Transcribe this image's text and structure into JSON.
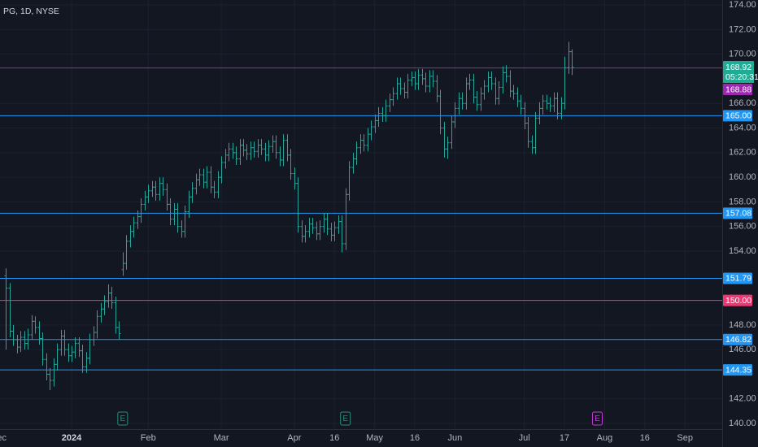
{
  "chart_data": {
    "type": "ohlc",
    "title": "PG, 1D, NYSE",
    "color": "#26a69a",
    "grid": true,
    "ylim": [
      139.54,
      174.4
    ],
    "xlim": [
      -19.6,
      178.2
    ],
    "yticks": [
      {
        "value": 140,
        "label": "140.00"
      },
      {
        "value": 142,
        "label": "142.00"
      },
      {
        "value": 146,
        "label": "146.00"
      },
      {
        "value": 148,
        "label": "148.00"
      },
      {
        "value": 154,
        "label": "154.00"
      },
      {
        "value": 156,
        "label": "156.00"
      },
      {
        "value": 158,
        "label": "158.00"
      },
      {
        "value": 160,
        "label": "160.00"
      },
      {
        "value": 162,
        "label": "162.00"
      },
      {
        "value": 164,
        "label": "164.00"
      },
      {
        "value": 166,
        "label": "166.00"
      },
      {
        "value": 170,
        "label": "170.00"
      },
      {
        "value": 172,
        "label": "172.00"
      },
      {
        "value": 174,
        "label": "174.00"
      }
    ],
    "xticks": [
      {
        "value": -20,
        "label": "Dec"
      },
      {
        "value": 0,
        "label": "2024"
      },
      {
        "value": 21,
        "label": "Feb"
      },
      {
        "value": 41,
        "label": "Mar"
      },
      {
        "value": 61,
        "label": "Apr"
      },
      {
        "value": 72,
        "label": "16"
      },
      {
        "value": 83,
        "label": "May"
      },
      {
        "value": 94,
        "label": "16"
      },
      {
        "value": 105,
        "label": "Jun"
      },
      {
        "value": 124,
        "label": "Jul"
      },
      {
        "value": 135,
        "label": "17"
      },
      {
        "value": 146,
        "label": "Aug"
      },
      {
        "value": 157,
        "label": "16"
      },
      {
        "value": 168,
        "label": "Sep"
      }
    ],
    "x_start": -18,
    "ohlc": [
      [
        152.0,
        152.6,
        146.0,
        151.0
      ],
      [
        151.0,
        151.4,
        147.0,
        147.5
      ],
      [
        147.5,
        148.0,
        146.3,
        146.8
      ],
      [
        146.8,
        147.2,
        145.7,
        146.2
      ],
      [
        146.2,
        147.5,
        145.8,
        147.0
      ],
      [
        147.0,
        147.5,
        146.0,
        146.5
      ],
      [
        146.5,
        147.7,
        146.0,
        147.2
      ],
      [
        147.2,
        148.8,
        146.8,
        148.3
      ],
      [
        148.3,
        148.7,
        147.3,
        147.8
      ],
      [
        147.8,
        148.3,
        146.4,
        146.9
      ],
      [
        146.9,
        147.4,
        144.7,
        145.2
      ],
      [
        145.2,
        145.7,
        143.5,
        144.0
      ],
      [
        144.0,
        144.5,
        142.7,
        143.5
      ],
      [
        143.5,
        145.3,
        143.0,
        144.8
      ],
      [
        144.8,
        146.5,
        144.3,
        146.0
      ],
      [
        146.0,
        147.6,
        145.5,
        147.1
      ],
      [
        147.1,
        147.6,
        145.5,
        146.0
      ],
      [
        146.0,
        146.5,
        145.0,
        145.5
      ],
      [
        145.5,
        146.3,
        145.0,
        145.8
      ],
      [
        145.8,
        147.0,
        145.3,
        146.5
      ],
      [
        146.5,
        147.0,
        145.4,
        145.9
      ],
      [
        145.9,
        146.4,
        144.1,
        144.6
      ],
      [
        144.6,
        145.8,
        144.1,
        145.3
      ],
      [
        145.3,
        147.3,
        144.8,
        146.8
      ],
      [
        146.8,
        147.9,
        146.3,
        147.4
      ],
      [
        147.4,
        149.2,
        146.9,
        148.7
      ],
      [
        148.7,
        149.8,
        148.2,
        149.3
      ],
      [
        149.3,
        150.4,
        148.8,
        149.9
      ],
      [
        149.9,
        151.3,
        149.4,
        150.6
      ],
      [
        150.6,
        151.1,
        149.3,
        149.8
      ],
      [
        149.8,
        150.3,
        147.3,
        147.8
      ],
      [
        147.8,
        148.3,
        146.8,
        147.3
      ],
      [
        152.5,
        153.9,
        152.0,
        153.0
      ],
      [
        153.0,
        155.3,
        152.5,
        154.8
      ],
      [
        154.8,
        156.1,
        154.3,
        155.6
      ],
      [
        155.6,
        156.8,
        155.1,
        156.3
      ],
      [
        156.3,
        157.3,
        155.8,
        156.8
      ],
      [
        156.8,
        158.3,
        156.3,
        157.8
      ],
      [
        157.8,
        158.9,
        157.3,
        158.4
      ],
      [
        158.4,
        159.4,
        157.9,
        158.9
      ],
      [
        158.9,
        159.7,
        158.4,
        159.2
      ],
      [
        159.2,
        159.7,
        158.1,
        158.6
      ],
      [
        158.6,
        160.0,
        158.1,
        159.5
      ],
      [
        159.5,
        160.0,
        158.5,
        159.0
      ],
      [
        159.0,
        159.5,
        157.3,
        157.8
      ],
      [
        157.8,
        158.3,
        156.1,
        156.6
      ],
      [
        156.6,
        157.9,
        156.1,
        157.4
      ],
      [
        157.4,
        157.9,
        155.5,
        156.0
      ],
      [
        156.0,
        156.5,
        155.1,
        155.6
      ],
      [
        155.6,
        157.7,
        155.1,
        157.2
      ],
      [
        157.2,
        158.9,
        156.7,
        158.4
      ],
      [
        158.4,
        159.6,
        157.9,
        159.1
      ],
      [
        159.1,
        160.3,
        158.6,
        159.8
      ],
      [
        159.8,
        160.7,
        159.3,
        160.2
      ],
      [
        160.2,
        160.7,
        159.1,
        159.6
      ],
      [
        159.6,
        160.9,
        159.1,
        160.4
      ],
      [
        160.4,
        160.9,
        158.7,
        159.2
      ],
      [
        159.2,
        159.7,
        158.3,
        158.8
      ],
      [
        158.8,
        160.5,
        158.3,
        160.0
      ],
      [
        160.0,
        161.7,
        159.5,
        161.2
      ],
      [
        161.2,
        162.3,
        160.7,
        161.8
      ],
      [
        161.8,
        162.8,
        161.3,
        162.3
      ],
      [
        162.3,
        162.8,
        161.5,
        162.0
      ],
      [
        162.0,
        162.5,
        161.0,
        161.5
      ],
      [
        161.5,
        163.1,
        161.0,
        162.6
      ],
      [
        162.6,
        163.1,
        161.7,
        162.2
      ],
      [
        162.2,
        162.7,
        161.4,
        161.9
      ],
      [
        161.9,
        162.9,
        161.4,
        162.4
      ],
      [
        162.4,
        162.9,
        161.6,
        162.1
      ],
      [
        162.1,
        163.1,
        161.6,
        162.6
      ],
      [
        162.6,
        163.1,
        161.8,
        162.3
      ],
      [
        162.3,
        162.8,
        161.3,
        161.8
      ],
      [
        161.8,
        163.0,
        161.3,
        162.5
      ],
      [
        162.5,
        163.4,
        162.0,
        162.9
      ],
      [
        162.9,
        163.4,
        161.5,
        162.0
      ],
      [
        162.0,
        162.5,
        160.9,
        161.4
      ],
      [
        161.4,
        163.5,
        160.9,
        163.0
      ],
      [
        163.0,
        163.5,
        161.3,
        161.8
      ],
      [
        161.8,
        162.3,
        159.8,
        160.3
      ],
      [
        160.3,
        160.8,
        159.0,
        159.5
      ],
      [
        159.5,
        160.0,
        155.5,
        156.0
      ],
      [
        156.0,
        156.5,
        154.7,
        155.2
      ],
      [
        155.2,
        156.1,
        154.7,
        155.6
      ],
      [
        155.6,
        156.7,
        155.1,
        156.2
      ],
      [
        156.2,
        156.7,
        155.4,
        155.9
      ],
      [
        155.9,
        156.4,
        154.9,
        155.4
      ],
      [
        155.4,
        156.5,
        154.9,
        156.0
      ],
      [
        156.0,
        157.1,
        155.5,
        156.6
      ],
      [
        156.6,
        157.1,
        155.3,
        155.8
      ],
      [
        155.8,
        156.3,
        154.8,
        155.3
      ],
      [
        155.3,
        156.4,
        154.8,
        155.9
      ],
      [
        155.9,
        156.9,
        155.4,
        156.4
      ],
      [
        156.4,
        156.9,
        153.9,
        154.6
      ],
      [
        154.6,
        159.1,
        154.1,
        158.6
      ],
      [
        158.6,
        161.3,
        158.1,
        160.8
      ],
      [
        160.8,
        162.0,
        160.3,
        161.5
      ],
      [
        161.5,
        162.9,
        161.0,
        162.4
      ],
      [
        162.4,
        163.5,
        161.9,
        163.0
      ],
      [
        163.0,
        163.5,
        162.1,
        162.6
      ],
      [
        162.6,
        164.0,
        162.1,
        163.5
      ],
      [
        163.5,
        164.6,
        163.0,
        164.1
      ],
      [
        164.1,
        165.1,
        163.6,
        164.6
      ],
      [
        164.6,
        165.7,
        164.1,
        165.2
      ],
      [
        165.2,
        165.7,
        164.5,
        165.0
      ],
      [
        165.0,
        166.3,
        164.5,
        165.8
      ],
      [
        165.8,
        166.8,
        165.3,
        166.3
      ],
      [
        166.3,
        167.3,
        165.8,
        166.8
      ],
      [
        166.8,
        168.1,
        166.3,
        167.6
      ],
      [
        167.6,
        168.1,
        166.7,
        167.2
      ],
      [
        167.2,
        167.7,
        166.4,
        166.9
      ],
      [
        166.9,
        168.4,
        166.4,
        167.9
      ],
      [
        167.9,
        168.6,
        167.4,
        168.1
      ],
      [
        168.1,
        168.6,
        167.1,
        167.6
      ],
      [
        167.6,
        168.8,
        167.1,
        168.3
      ],
      [
        168.3,
        168.8,
        167.5,
        168.0
      ],
      [
        168.0,
        168.5,
        166.9,
        167.4
      ],
      [
        167.4,
        168.7,
        166.9,
        168.2
      ],
      [
        168.2,
        168.7,
        167.3,
        167.8
      ],
      [
        167.8,
        168.3,
        166.1,
        166.6
      ],
      [
        166.6,
        167.1,
        163.5,
        164.0
      ],
      [
        164.0,
        164.5,
        161.6,
        162.3
      ],
      [
        162.3,
        163.3,
        161.5,
        162.8
      ],
      [
        162.8,
        165.0,
        162.3,
        164.5
      ],
      [
        164.5,
        166.1,
        164.0,
        165.6
      ],
      [
        165.6,
        166.9,
        165.1,
        166.4
      ],
      [
        166.4,
        166.9,
        165.5,
        166.0
      ],
      [
        166.0,
        168.1,
        165.5,
        167.6
      ],
      [
        167.6,
        168.4,
        167.1,
        167.9
      ],
      [
        167.9,
        168.4,
        166.0,
        166.5
      ],
      [
        166.5,
        167.0,
        165.4,
        165.9
      ],
      [
        165.9,
        167.3,
        165.4,
        166.8
      ],
      [
        166.8,
        167.9,
        166.3,
        167.4
      ],
      [
        167.4,
        168.6,
        166.9,
        168.1
      ],
      [
        168.1,
        168.6,
        167.1,
        167.6
      ],
      [
        167.6,
        168.1,
        165.9,
        166.4
      ],
      [
        166.4,
        167.8,
        165.9,
        167.3
      ],
      [
        167.3,
        169.0,
        166.8,
        168.5
      ],
      [
        168.5,
        169.1,
        167.7,
        168.2
      ],
      [
        168.2,
        168.7,
        166.5,
        167.0
      ],
      [
        167.0,
        167.5,
        166.3,
        166.8
      ],
      [
        166.8,
        167.3,
        165.7,
        166.2
      ],
      [
        166.2,
        166.7,
        165.1,
        165.6
      ],
      [
        165.6,
        166.1,
        163.9,
        164.4
      ],
      [
        164.4,
        164.9,
        162.4,
        162.9
      ],
      [
        162.9,
        163.4,
        161.9,
        162.4
      ],
      [
        162.4,
        165.3,
        161.9,
        164.8
      ],
      [
        164.8,
        166.1,
        164.3,
        165.6
      ],
      [
        165.6,
        166.7,
        165.1,
        166.2
      ],
      [
        166.2,
        166.7,
        165.5,
        166.0
      ],
      [
        166.0,
        166.5,
        165.3,
        165.8
      ],
      [
        165.8,
        166.9,
        165.3,
        166.4
      ],
      [
        166.4,
        166.9,
        164.7,
        165.2
      ],
      [
        165.2,
        166.5,
        164.7,
        166.0
      ],
      [
        166.0,
        169.8,
        165.5,
        168.9
      ],
      [
        168.9,
        171.0,
        168.4,
        170.2
      ],
      [
        170.2,
        170.4,
        168.3,
        168.92
      ]
    ],
    "countdown": "05:20:31",
    "last_price_color": "#22ab94",
    "levels": [
      {
        "value": 168.88,
        "label": "168.88",
        "color": "#9c27b0"
      },
      {
        "value": 165,
        "label": "165.00",
        "color": "#2196f3"
      },
      {
        "value": 157.08,
        "label": "157.08",
        "color": "#2196f3"
      },
      {
        "value": 151.79,
        "label": "151.79",
        "color": "#2196f3"
      },
      {
        "value": 150,
        "label": "150.00",
        "color": "#f23674"
      },
      {
        "value": 146.82,
        "label": "146.82",
        "color": "#2196f3"
      },
      {
        "value": 144.35,
        "label": "144.35",
        "color": "#2196f3"
      }
    ],
    "events": [
      {
        "x": 14,
        "label": "E",
        "color": "#2e8b76"
      },
      {
        "x": 75,
        "label": "E",
        "color": "#2e8b76"
      },
      {
        "x": 144,
        "label": "E",
        "color": "#c53ad6"
      }
    ]
  }
}
